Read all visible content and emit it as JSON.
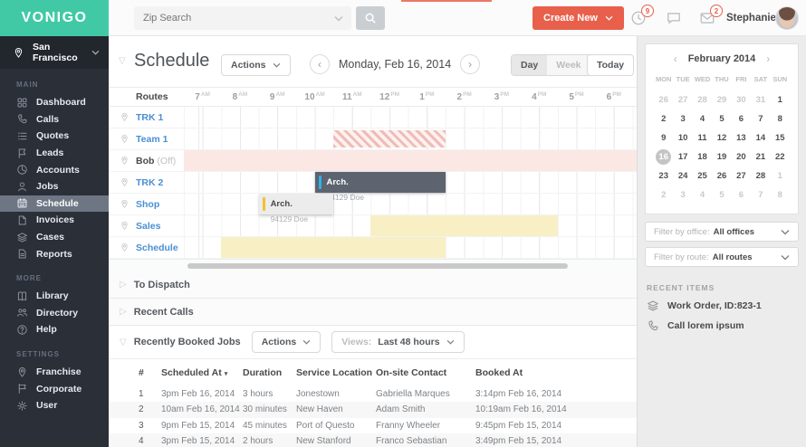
{
  "colors": {
    "brand_teal": "#41c9a6",
    "action_red": "#e8604c",
    "link_blue": "#4a8fd4",
    "bar_dark": "#5d6470",
    "bar_dark_accent": "#2cb3e8",
    "bar_light": "#ececec",
    "bar_light_accent": "#f2c12e",
    "bar_pink": "#fbe8e5",
    "bar_yellow": "#f9efc5",
    "hatch_pink": "#efbcb7"
  },
  "topbar": {
    "logo": "VONIGO",
    "search_placeholder": "Zip Search",
    "create_new": "Create New",
    "clock_badge": "9",
    "mail_badge": "2",
    "user": "Stephanie"
  },
  "sidebar": {
    "location": "San Francisco",
    "sections": [
      {
        "title": "Main",
        "items": [
          {
            "label": "Dashboard",
            "icon": "dashboard"
          },
          {
            "label": "Calls",
            "icon": "phone"
          },
          {
            "label": "Quotes",
            "icon": "list"
          },
          {
            "label": "Leads",
            "icon": "banner"
          },
          {
            "label": "Accounts",
            "icon": "pie"
          },
          {
            "label": "Jobs",
            "icon": "person"
          },
          {
            "label": "Schedule",
            "icon": "calendar",
            "active": true
          },
          {
            "label": "Invoices",
            "icon": "document"
          },
          {
            "label": "Cases",
            "icon": "layers"
          },
          {
            "label": "Reports",
            "icon": "report"
          }
        ]
      },
      {
        "title": "More",
        "items": [
          {
            "label": "Library",
            "icon": "book"
          },
          {
            "label": "Directory",
            "icon": "people"
          },
          {
            "label": "Help",
            "icon": "help"
          }
        ]
      },
      {
        "title": "Settings",
        "items": [
          {
            "label": "Franchise",
            "icon": "map-pin"
          },
          {
            "label": "Corporate",
            "icon": "flag"
          },
          {
            "label": "User",
            "icon": "gear"
          }
        ]
      }
    ]
  },
  "schedule_panel": {
    "title": "Schedule",
    "actions": "Actions",
    "date": "Monday, Feb 16, 2014",
    "views": [
      "Day",
      "Week"
    ],
    "active_view": "Day",
    "today": "Today",
    "routes_header": "Routes",
    "timeline": {
      "start": 6.5,
      "end": 18.61,
      "hour_labels": [
        {
          "hour": 7,
          "text": "7",
          "suffix": "AM"
        },
        {
          "hour": 8,
          "text": "8",
          "suffix": "AM"
        },
        {
          "hour": 9,
          "text": "9",
          "suffix": "AM"
        },
        {
          "hour": 10,
          "text": "10",
          "suffix": "AM"
        },
        {
          "hour": 11,
          "text": "11",
          "suffix": "AM"
        },
        {
          "hour": 12,
          "text": "12",
          "suffix": "PM"
        },
        {
          "hour": 13,
          "text": "1",
          "suffix": "PM"
        },
        {
          "hour": 14,
          "text": "2",
          "suffix": "PM"
        },
        {
          "hour": 15,
          "text": "3",
          "suffix": "PM"
        },
        {
          "hour": 16,
          "text": "4",
          "suffix": "PM"
        },
        {
          "hour": 17,
          "text": "5",
          "suffix": "PM"
        },
        {
          "hour": 18,
          "text": "6",
          "suffix": "PM"
        }
      ]
    },
    "rows": [
      {
        "name": "TRK 1",
        "bars": []
      },
      {
        "name": "Team 1",
        "bars": [
          {
            "kind": "hatched",
            "start": 10.5,
            "end": 13.5
          }
        ]
      },
      {
        "name": "Bob",
        "suffix": "(Off)",
        "off": true,
        "bars": [
          {
            "kind": "pink",
            "start": 6.5,
            "end": 18.61
          }
        ]
      },
      {
        "name": "TRK 2",
        "bars": [
          {
            "kind": "dark",
            "start": 10,
            "end": 13.5,
            "title": "Arch.",
            "subtitle": "94129 Doe"
          }
        ]
      },
      {
        "name": "Shop",
        "bars": [
          {
            "kind": "light",
            "start": 8.5,
            "end": 10.5,
            "title": "Arch.",
            "subtitle": "94129 Doe"
          }
        ]
      },
      {
        "name": "Sales",
        "bars": [
          {
            "kind": "yellow",
            "start": 11.5,
            "end": 16.5
          }
        ]
      },
      {
        "name": "Schedule",
        "bars": [
          {
            "kind": "yellow",
            "start": 7.5,
            "end": 13.5
          }
        ]
      }
    ]
  },
  "lists": {
    "to_dispatch": "To Dispatch",
    "recent_calls": "Recent Calls"
  },
  "booked": {
    "title": "Recently Booked Jobs",
    "actions": "Actions",
    "views_label": "Views:",
    "views_value": "Last 48 hours",
    "table": {
      "columns": [
        "#",
        "Scheduled At",
        "Duration",
        "Service Location",
        "On-site Contact",
        "Booked At"
      ],
      "sort_column": "Scheduled At",
      "rows": [
        [
          "1",
          "3pm Feb 16, 2014",
          "3 hours",
          "Jonestown",
          "Gabriella Marques",
          "3:14pm Feb 16, 2014"
        ],
        [
          "2",
          "10am Feb 16, 2014",
          "30 minutes",
          "New Haven",
          "Adam Smith",
          "10:19am Feb 16, 2014"
        ],
        [
          "3",
          "9pm Feb 15, 2014",
          "45 minutes",
          "Port of Questo",
          "Franny Wheeler",
          "9:45pm Feb 15, 2014"
        ],
        [
          "4",
          "3pm Feb 15, 2014",
          "2 hours",
          "New Stanford",
          "Franco Sebastian",
          "3:49pm Feb 15, 2014"
        ]
      ]
    }
  },
  "right_panel": {
    "calendar": {
      "month": "February 2014",
      "day_headers": [
        "MON",
        "TUE",
        "WED",
        "THU",
        "FRI",
        "SAT",
        "SUN"
      ],
      "weeks": [
        [
          {
            "d": "26",
            "m": 1
          },
          {
            "d": "27",
            "m": 1
          },
          {
            "d": "28",
            "m": 1
          },
          {
            "d": "29",
            "m": 1
          },
          {
            "d": "30",
            "m": 1
          },
          {
            "d": "31",
            "m": 1
          },
          {
            "d": "1"
          }
        ],
        [
          {
            "d": "2"
          },
          {
            "d": "3"
          },
          {
            "d": "4"
          },
          {
            "d": "5"
          },
          {
            "d": "6"
          },
          {
            "d": "7"
          },
          {
            "d": "8"
          }
        ],
        [
          {
            "d": "9"
          },
          {
            "d": "10"
          },
          {
            "d": "11"
          },
          {
            "d": "12"
          },
          {
            "d": "13"
          },
          {
            "d": "14"
          },
          {
            "d": "15"
          }
        ],
        [
          {
            "d": "16",
            "s": 1
          },
          {
            "d": "17"
          },
          {
            "d": "18"
          },
          {
            "d": "19"
          },
          {
            "d": "20"
          },
          {
            "d": "21"
          },
          {
            "d": "22"
          }
        ],
        [
          {
            "d": "23"
          },
          {
            "d": "24"
          },
          {
            "d": "25"
          },
          {
            "d": "26"
          },
          {
            "d": "27"
          },
          {
            "d": "28"
          },
          {
            "d": "1",
            "m": 1
          }
        ],
        [
          {
            "d": "2",
            "m": 1
          },
          {
            "d": "3",
            "m": 1
          },
          {
            "d": "4",
            "m": 1
          },
          {
            "d": "5",
            "m": 1
          },
          {
            "d": "6",
            "m": 1
          },
          {
            "d": "7",
            "m": 1
          },
          {
            "d": "8",
            "m": 1
          }
        ]
      ]
    },
    "filters": [
      {
        "label": "Filter by office:",
        "value": "All offices",
        "name": "filter-office"
      },
      {
        "label": "Filter by route:",
        "value": "All routes",
        "name": "filter-route"
      }
    ],
    "recent_title": "Recent Items",
    "recent_items": [
      {
        "icon": "layers",
        "label": "Work Order, ID:823-1"
      },
      {
        "icon": "phone",
        "label": "Call lorem ipsum"
      }
    ]
  }
}
